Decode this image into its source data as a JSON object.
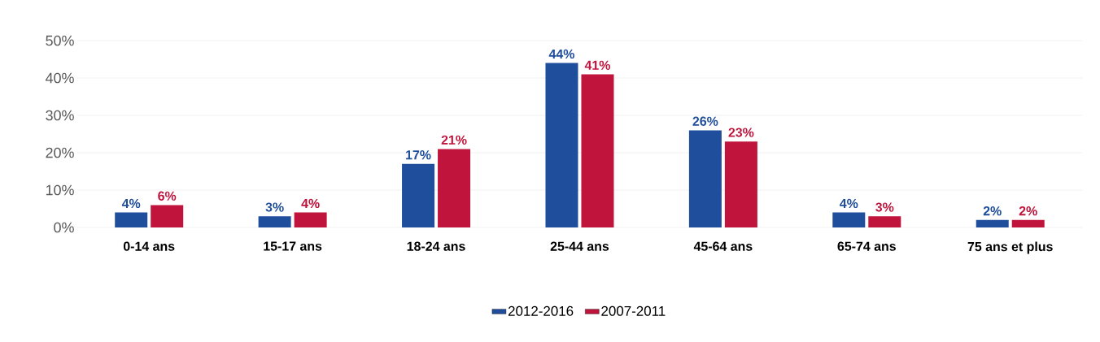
{
  "chart_data": {
    "type": "bar",
    "categories": [
      "0-14 ans",
      "15-17 ans",
      "18-24 ans",
      "25-44 ans",
      "45-64 ans",
      "65-74 ans",
      "75 ans et plus"
    ],
    "series": [
      {
        "name": "2012-2016",
        "color": "#1f4e9c",
        "values": [
          4,
          3,
          17,
          44,
          26,
          4,
          2
        ],
        "value_labels": [
          "4%",
          "3%",
          "17%",
          "44%",
          "26%",
          "4%",
          "2%"
        ]
      },
      {
        "name": "2007-2011",
        "color": "#c0143c",
        "values": [
          6,
          4,
          21,
          41,
          23,
          3,
          2
        ],
        "value_labels": [
          "6%",
          "4%",
          "21%",
          "41%",
          "23%",
          "3%",
          "2%"
        ]
      }
    ],
    "ylim": [
      0,
      50
    ],
    "yticks": [
      {
        "value": 0,
        "label": "0%"
      },
      {
        "value": 10,
        "label": "10%"
      },
      {
        "value": 20,
        "label": "20%"
      },
      {
        "value": 30,
        "label": "30%"
      },
      {
        "value": 40,
        "label": "40%"
      },
      {
        "value": 50,
        "label": "50%"
      }
    ],
    "grid": "y",
    "legend": "bottom"
  }
}
